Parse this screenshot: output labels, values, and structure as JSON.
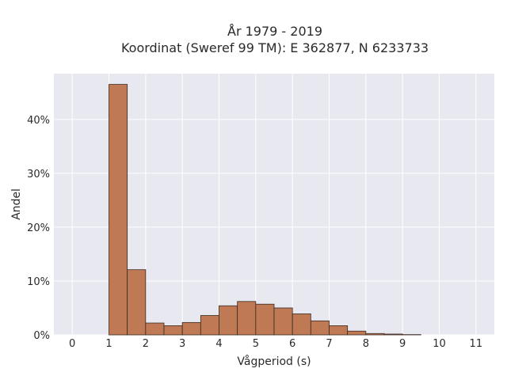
{
  "chart_data": {
    "type": "bar",
    "title": "År 1979 - 2019",
    "subtitle": "Koordinat (Sweref 99 TM): E 362877, N 6233733",
    "xlabel": "Vågperiod (s)",
    "ylabel": "Andel",
    "xlim": [
      -0.5,
      11.5
    ],
    "ylim": [
      0,
      48.5
    ],
    "x_ticks": [
      "0",
      "1",
      "2",
      "3",
      "4",
      "5",
      "6",
      "7",
      "8",
      "9",
      "10",
      "11"
    ],
    "y_ticks": [
      "0%",
      "10%",
      "20%",
      "30%",
      "40%"
    ],
    "bin_width": 0.5,
    "bins": [
      {
        "start": 1.0,
        "value": 46.5
      },
      {
        "start": 1.5,
        "value": 12.1
      },
      {
        "start": 2.0,
        "value": 2.2
      },
      {
        "start": 2.5,
        "value": 1.7
      },
      {
        "start": 3.0,
        "value": 2.3
      },
      {
        "start": 3.5,
        "value": 3.6
      },
      {
        "start": 4.0,
        "value": 5.4
      },
      {
        "start": 4.5,
        "value": 6.2
      },
      {
        "start": 5.0,
        "value": 5.7
      },
      {
        "start": 5.5,
        "value": 5.0
      },
      {
        "start": 6.0,
        "value": 3.9
      },
      {
        "start": 6.5,
        "value": 2.6
      },
      {
        "start": 7.0,
        "value": 1.7
      },
      {
        "start": 7.5,
        "value": 0.7
      },
      {
        "start": 8.0,
        "value": 0.25
      },
      {
        "start": 8.5,
        "value": 0.15
      },
      {
        "start": 9.0,
        "value": 0.05
      }
    ],
    "grid": true,
    "colors": {
      "bar_fill": "#bf7a55",
      "bar_edge": "#3a2a20",
      "plot_background": "#e8e8f0",
      "grid": "#ffffff"
    }
  }
}
